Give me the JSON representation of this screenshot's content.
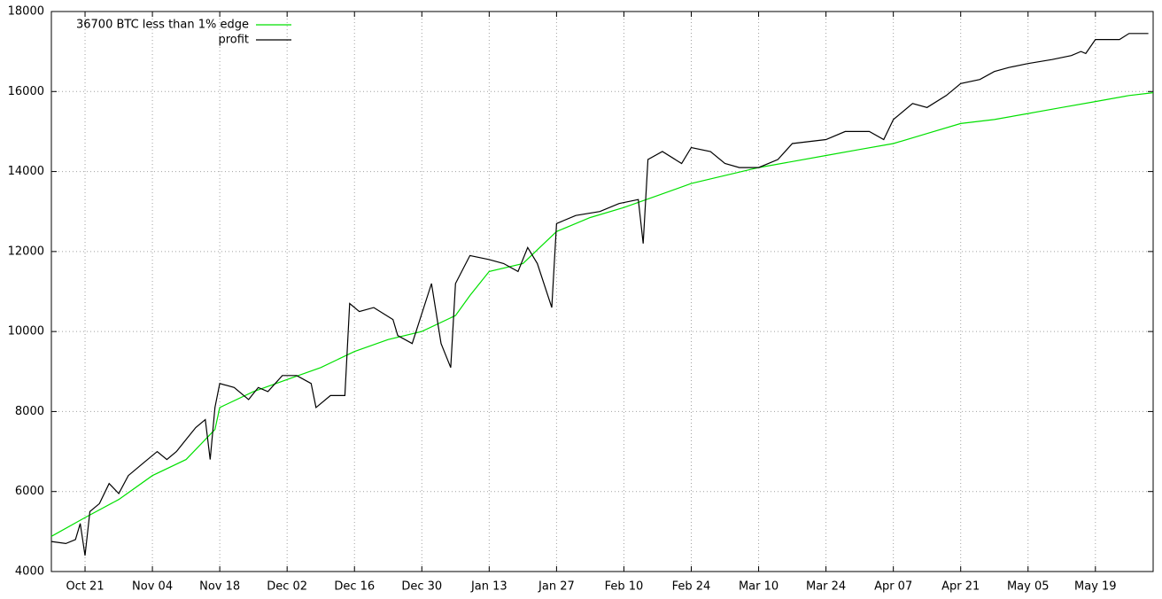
{
  "chart_data": {
    "type": "line",
    "xlim": [
      "Oct 14",
      "May 31"
    ],
    "ylim": [
      4000,
      18000
    ],
    "xticks": [
      "Oct 21",
      "Nov 04",
      "Nov 18",
      "Dec 02",
      "Dec 16",
      "Dec 30",
      "Jan 13",
      "Jan 27",
      "Feb 10",
      "Feb 24",
      "Mar 10",
      "Mar 24",
      "Apr 07",
      "Apr 21",
      "May 05",
      "May 19"
    ],
    "yticks": [
      4000,
      6000,
      8000,
      10000,
      12000,
      14000,
      16000,
      18000
    ],
    "grid": true,
    "legend": "top-left",
    "series": [
      {
        "name": "36700 BTC less than 1% edge",
        "color": "#00e000",
        "x": [
          "Oct 14",
          "Oct 21",
          "Oct 28",
          "Nov 04",
          "Nov 11",
          "Nov 17",
          "Nov 18",
          "Nov 25",
          "Dec 02",
          "Dec 09",
          "Dec 16",
          "Dec 23",
          "Dec 30",
          "Jan 06",
          "Jan 09",
          "Jan 13",
          "Jan 20",
          "Jan 27",
          "Feb 03",
          "Feb 10",
          "Feb 17",
          "Feb 24",
          "Mar 03",
          "Mar 10",
          "Mar 17",
          "Mar 24",
          "Mar 31",
          "Apr 07",
          "Apr 14",
          "Apr 21",
          "Apr 28",
          "May 05",
          "May 12",
          "May 19",
          "May 26",
          "May 31"
        ],
        "values": [
          4880,
          5350,
          5800,
          6400,
          6800,
          7550,
          8100,
          8500,
          8800,
          9100,
          9500,
          9800,
          10000,
          10400,
          10900,
          11500,
          11700,
          12500,
          12850,
          13100,
          13400,
          13700,
          13900,
          14100,
          14250,
          14400,
          14550,
          14700,
          14950,
          15200,
          15300,
          15450,
          15600,
          15750,
          15900,
          15970
        ]
      },
      {
        "name": "profit",
        "color": "#000000",
        "x": [
          "Oct 14",
          "Oct 17",
          "Oct 19",
          "Oct 20",
          "Oct 21",
          "Oct 22",
          "Oct 24",
          "Oct 26",
          "Oct 28",
          "Oct 30",
          "Nov 02",
          "Nov 05",
          "Nov 07",
          "Nov 09",
          "Nov 11",
          "Nov 13",
          "Nov 15",
          "Nov 16",
          "Nov 17",
          "Nov 18",
          "Nov 21",
          "Nov 24",
          "Nov 26",
          "Nov 28",
          "Dec 01",
          "Dec 04",
          "Dec 07",
          "Dec 08",
          "Dec 11",
          "Dec 14",
          "Dec 15",
          "Dec 17",
          "Dec 20",
          "Dec 24",
          "Dec 25",
          "Dec 28",
          "Jan 01",
          "Jan 03",
          "Jan 05",
          "Jan 06",
          "Jan 09",
          "Jan 13",
          "Jan 16",
          "Jan 19",
          "Jan 21",
          "Jan 23",
          "Jan 26",
          "Jan 27",
          "Jan 31",
          "Feb 05",
          "Feb 09",
          "Feb 13",
          "Feb 14",
          "Feb 15",
          "Feb 18",
          "Feb 22",
          "Feb 24",
          "Feb 28",
          "Mar 03",
          "Mar 06",
          "Mar 10",
          "Mar 14",
          "Mar 17",
          "Mar 24",
          "Mar 28",
          "Apr 02",
          "Apr 05",
          "Apr 07",
          "Apr 11",
          "Apr 14",
          "Apr 18",
          "Apr 21",
          "Apr 25",
          "Apr 28",
          "May 01",
          "May 05",
          "May 10",
          "May 14",
          "May 16",
          "May 17",
          "May 19",
          "May 24",
          "May 26",
          "May 30"
        ],
        "values": [
          4750,
          4700,
          4800,
          5200,
          4400,
          5500,
          5700,
          6200,
          5950,
          6400,
          6700,
          7000,
          6800,
          7000,
          7300,
          7600,
          7800,
          6800,
          8100,
          8700,
          8600,
          8300,
          8600,
          8500,
          8900,
          8900,
          8700,
          8100,
          8400,
          8400,
          10700,
          10500,
          10600,
          10300,
          9900,
          9700,
          11200,
          9700,
          9100,
          11200,
          11900,
          11800,
          11700,
          11500,
          12100,
          11700,
          10600,
          12700,
          12900,
          13000,
          13200,
          13300,
          12200,
          14300,
          14500,
          14200,
          14600,
          14500,
          14200,
          14100,
          14100,
          14300,
          14700,
          14800,
          15000,
          15000,
          14800,
          15300,
          15700,
          15600,
          15900,
          16200,
          16300,
          16500,
          16600,
          16700,
          16800,
          16900,
          17000,
          16950,
          17300,
          17300,
          17450,
          17450
        ]
      }
    ]
  }
}
